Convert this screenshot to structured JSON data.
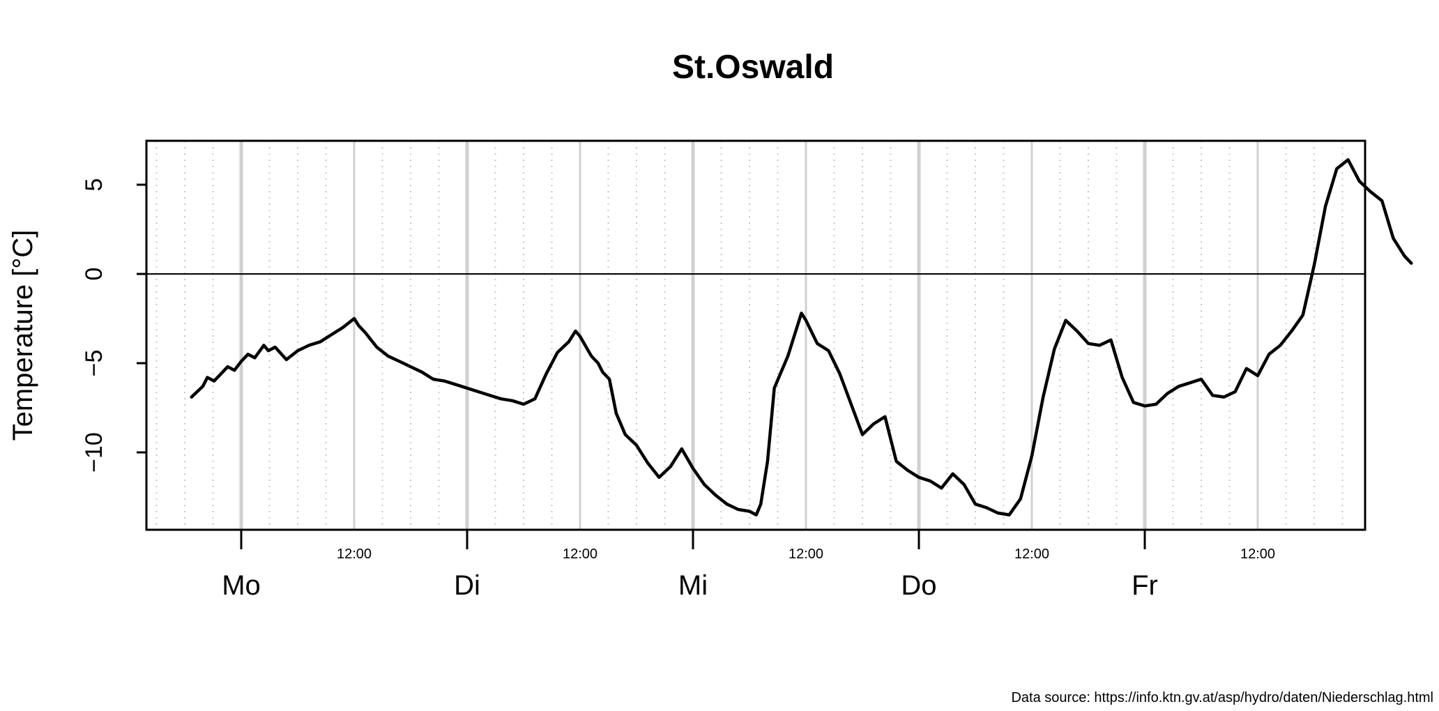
{
  "chart_data": {
    "type": "line",
    "title": "St.Oswald",
    "ylabel": "Temperature [°C]",
    "xlabel": "",
    "ylim": [
      -14.3,
      7.5
    ],
    "xlim": [
      -0.22,
      5.18
    ],
    "yticks": [
      5,
      0,
      -5,
      -10
    ],
    "day_labels": [
      "Mo",
      "Di",
      "Mi",
      "Do",
      "Fr"
    ],
    "hour_label": "12:00",
    "reference_line_y": 0,
    "grid": {
      "midnight_lines": true,
      "noon_lines": true,
      "three_hour_dotted_lines": true
    },
    "series": [
      {
        "x": [
          -0.22,
          -0.17,
          -0.15,
          -0.12,
          -0.09,
          -0.06,
          -0.03,
          0.0,
          0.03,
          0.06,
          0.1,
          0.12,
          0.15,
          0.2,
          0.25,
          0.3,
          0.35,
          0.4,
          0.45,
          0.5,
          0.52,
          0.55,
          0.6,
          0.65,
          0.7,
          0.75,
          0.8,
          0.85,
          0.9,
          0.95,
          1.0,
          1.05,
          1.1,
          1.15,
          1.2,
          1.25,
          1.3,
          1.35,
          1.4,
          1.45,
          1.48,
          1.5,
          1.55,
          1.58,
          1.6,
          1.63,
          1.66,
          1.7,
          1.75,
          1.8,
          1.85,
          1.9,
          1.95,
          2.0,
          2.05,
          2.1,
          2.15,
          2.2,
          2.25,
          2.28,
          2.3,
          2.33,
          2.36,
          2.4,
          2.42,
          2.45,
          2.48,
          2.5,
          2.55,
          2.6,
          2.65,
          2.7,
          2.75,
          2.8,
          2.85,
          2.9,
          2.95,
          3.0,
          3.05,
          3.1,
          3.15,
          3.2,
          3.25,
          3.3,
          3.35,
          3.4,
          3.45,
          3.5,
          3.55,
          3.6,
          3.65,
          3.7,
          3.75,
          3.8,
          3.85,
          3.9,
          3.95,
          4.0,
          4.05,
          4.1,
          4.15,
          4.2,
          4.25,
          4.3,
          4.35,
          4.4,
          4.45,
          4.5,
          4.55,
          4.6,
          4.65,
          4.7,
          4.75,
          4.8,
          4.85,
          4.9,
          4.95,
          5.0,
          5.05,
          5.1,
          5.15,
          5.18
        ],
        "y": [
          -6.9,
          -6.3,
          -5.8,
          -6.0,
          -5.6,
          -5.2,
          -5.4,
          -4.9,
          -4.5,
          -4.7,
          -4.0,
          -4.3,
          -4.1,
          -4.8,
          -4.3,
          -4.0,
          -3.8,
          -3.4,
          -3.0,
          -2.5,
          -2.9,
          -3.3,
          -4.1,
          -4.6,
          -4.9,
          -5.2,
          -5.5,
          -5.9,
          -6.0,
          -6.2,
          -6.4,
          -6.6,
          -6.8,
          -7.0,
          -7.1,
          -7.3,
          -7.0,
          -5.6,
          -4.4,
          -3.8,
          -3.2,
          -3.5,
          -4.6,
          -5.0,
          -5.5,
          -5.9,
          -7.8,
          -9.0,
          -9.6,
          -10.6,
          -11.4,
          -10.8,
          -9.8,
          -10.9,
          -11.8,
          -12.4,
          -12.9,
          -13.2,
          -13.3,
          -13.5,
          -12.9,
          -10.5,
          -6.4,
          -5.2,
          -4.6,
          -3.4,
          -2.2,
          -2.6,
          -3.9,
          -4.3,
          -5.6,
          -7.3,
          -9.0,
          -8.4,
          -8.0,
          -10.5,
          -11.0,
          -11.4,
          -11.6,
          -12.0,
          -11.2,
          -11.8,
          -12.9,
          -13.1,
          -13.4,
          -13.5,
          -12.6,
          -10.2,
          -6.9,
          -4.2,
          -2.6,
          -3.2,
          -3.9,
          -4.0,
          -3.7,
          -5.8,
          -7.2,
          -7.4,
          -7.3,
          -6.7,
          -6.3,
          -6.1,
          -5.9,
          -6.8,
          -6.9,
          -6.6,
          -5.3,
          -5.7,
          -4.5,
          -4.0,
          -3.2,
          -2.3,
          0.5,
          3.8,
          5.9,
          6.4,
          5.2,
          4.6,
          4.1,
          2.0,
          1.0,
          0.6
        ],
        "color": "#000000"
      }
    ],
    "annotation": "Data source: https://info.ktn.gv.at/asp/hydro/daten/Niederschlag.html"
  }
}
